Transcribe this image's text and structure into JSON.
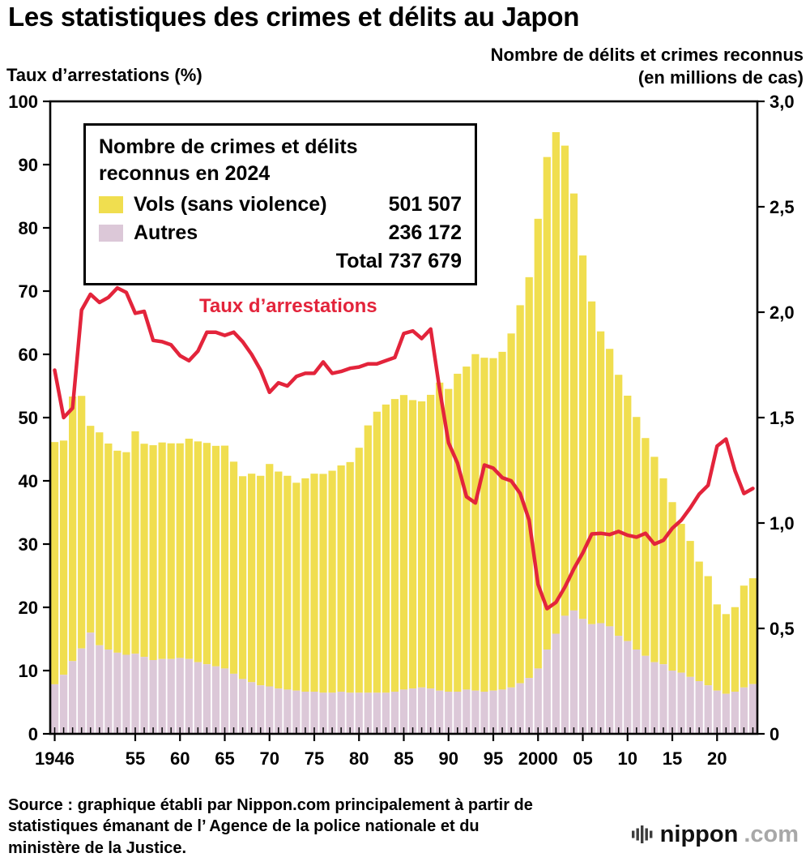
{
  "title": "Les statistiques des crimes et délits au Japon",
  "left_axis": {
    "label": "Taux d’arrestations (%)"
  },
  "right_axis": {
    "label_line1": "Nombre de délits et crimes reconnus",
    "label_line2": "(en millions de cas)"
  },
  "legend": {
    "title_line1": "Nombre de crimes et délits",
    "title_line2": "reconnus en 2024",
    "rows": [
      {
        "label": "Vols (sans violence)",
        "value": "501 507"
      },
      {
        "label": "Autres",
        "value": "236 172"
      }
    ],
    "total_label": "Total",
    "total_value": "737 679"
  },
  "line_label": "Taux d’arrestations",
  "source": {
    "lines": [
      "Source : graphique établi par Nippon.com principalement à partir de",
      "statistiques émanant de l’ Agence de la police nationale et du",
      "ministère de la Justice."
    ]
  },
  "logo": {
    "main": "nippon",
    "suffix": ".com"
  },
  "chart_data": {
    "type": "bar",
    "subtype": "stacked-bars-with-line",
    "title": "Les statistiques des crimes et délits au Japon",
    "start_year": 1946,
    "end_year": 2024,
    "left_ylim": [
      0,
      100
    ],
    "right_ylim": [
      0,
      3.0
    ],
    "bar_unit": "millions de cas (axe de droite)",
    "line_unit": "% (axe de gauche)",
    "series": [
      {
        "name": "Vols (sans violence)",
        "type": "bar-stack",
        "key": "vols"
      },
      {
        "name": "Autres",
        "type": "bar-stack",
        "key": "autres"
      },
      {
        "name": "Taux d’arrestations",
        "type": "line",
        "key": "arrest_rate_pct"
      }
    ],
    "vols": [
      1.149,
      1.111,
      1.255,
      1.198,
      0.981,
      1.01,
      0.977,
      0.958,
      0.961,
      1.055,
      1.011,
      1.019,
      1.027,
      1.023,
      1.018,
      1.045,
      1.047,
      1.05,
      1.046,
      1.057,
      1.006,
      0.962,
      0.989,
      0.994,
      1.055,
      1.029,
      1.014,
      0.986,
      1.012,
      1.034,
      1.038,
      1.053,
      1.073,
      1.094,
      1.162,
      1.268,
      1.333,
      1.367,
      1.388,
      1.397,
      1.368,
      1.357,
      1.393,
      1.461,
      1.436,
      1.508,
      1.532,
      1.596,
      1.584,
      1.577,
      1.602,
      1.679,
      1.793,
      1.901,
      2.133,
      2.336,
      2.379,
      2.23,
      1.978,
      1.724,
      1.531,
      1.384,
      1.316,
      1.238,
      1.164,
      1.103,
      1.033,
      0.974,
      0.882,
      0.799,
      0.706,
      0.645,
      0.567,
      0.518,
      0.409,
      0.378,
      0.401,
      0.483,
      0.502
    ],
    "autres": [
      0.235,
      0.28,
      0.345,
      0.405,
      0.48,
      0.42,
      0.4,
      0.385,
      0.375,
      0.38,
      0.365,
      0.35,
      0.355,
      0.355,
      0.36,
      0.355,
      0.34,
      0.33,
      0.32,
      0.31,
      0.285,
      0.26,
      0.245,
      0.23,
      0.225,
      0.215,
      0.21,
      0.205,
      0.2,
      0.2,
      0.195,
      0.195,
      0.2,
      0.195,
      0.195,
      0.195,
      0.195,
      0.195,
      0.2,
      0.21,
      0.215,
      0.22,
      0.215,
      0.205,
      0.2,
      0.2,
      0.21,
      0.205,
      0.2,
      0.205,
      0.21,
      0.22,
      0.24,
      0.265,
      0.31,
      0.4,
      0.475,
      0.56,
      0.585,
      0.545,
      0.52,
      0.525,
      0.51,
      0.465,
      0.44,
      0.4,
      0.37,
      0.34,
      0.33,
      0.3,
      0.29,
      0.27,
      0.25,
      0.23,
      0.205,
      0.19,
      0.2,
      0.22,
      0.236
    ],
    "arrest_rate_pct": [
      57.5,
      50.0,
      51.5,
      67.0,
      69.5,
      68.2,
      69.0,
      70.5,
      69.8,
      66.5,
      66.8,
      62.2,
      62.0,
      61.5,
      59.8,
      59.0,
      60.5,
      63.5,
      63.5,
      63.0,
      63.5,
      62.0,
      60.0,
      57.5,
      54.0,
      55.5,
      55.0,
      56.5,
      57.0,
      57.0,
      58.8,
      57.0,
      57.3,
      57.8,
      58.0,
      58.5,
      58.5,
      59.0,
      59.5,
      63.3,
      63.7,
      62.5,
      64.0,
      54.5,
      46.0,
      42.8,
      37.5,
      36.5,
      42.5,
      42.0,
      40.5,
      40.0,
      38.0,
      33.8,
      23.6,
      19.8,
      20.8,
      23.2,
      26.1,
      28.6,
      31.6,
      31.7,
      31.5,
      32.0,
      31.4,
      31.1,
      31.7,
      30.0,
      30.6,
      32.5,
      33.8,
      35.7,
      37.9,
      39.3,
      45.5,
      46.6,
      41.6,
      38.0,
      38.8
    ],
    "left_ticks": [
      {
        "value": 100,
        "label": "100"
      },
      {
        "value": 90,
        "label": "90"
      },
      {
        "value": 80,
        "label": "80"
      },
      {
        "value": 70,
        "label": "70"
      },
      {
        "value": 60,
        "label": "60"
      },
      {
        "value": 50,
        "label": "50"
      },
      {
        "value": 40,
        "label": "40"
      },
      {
        "value": 30,
        "label": "30"
      },
      {
        "value": 20,
        "label": "20"
      },
      {
        "value": 10,
        "label": "10"
      },
      {
        "value": 0,
        "label": "0"
      }
    ],
    "right_ticks": [
      {
        "value": 3.0,
        "label": "3,0"
      },
      {
        "value": 2.5,
        "label": "2,5"
      },
      {
        "value": 2.0,
        "label": "2,0"
      },
      {
        "value": 1.5,
        "label": "1,5"
      },
      {
        "value": 1.0,
        "label": "1,0"
      },
      {
        "value": 0.5,
        "label": "0,5"
      },
      {
        "value": 0,
        "label": "0"
      }
    ],
    "x_ticks": [
      {
        "year": 1946,
        "label": "1946"
      },
      {
        "year": 1955,
        "label": "55"
      },
      {
        "year": 1960,
        "label": "60"
      },
      {
        "year": 1965,
        "label": "65"
      },
      {
        "year": 1970,
        "label": "70"
      },
      {
        "year": 1975,
        "label": "75"
      },
      {
        "year": 1980,
        "label": "80"
      },
      {
        "year": 1985,
        "label": "85"
      },
      {
        "year": 1990,
        "label": "90"
      },
      {
        "year": 1995,
        "label": "95"
      },
      {
        "year": 2000,
        "label": "2000"
      },
      {
        "year": 2005,
        "label": "05"
      },
      {
        "year": 2010,
        "label": "10"
      },
      {
        "year": 2015,
        "label": "15"
      },
      {
        "year": 2020,
        "label": "20"
      }
    ],
    "colors": {
      "vols": "#f0de4f",
      "autres": "#dcc8d8",
      "line": "#e3243b",
      "axis": "#000000"
    }
  }
}
